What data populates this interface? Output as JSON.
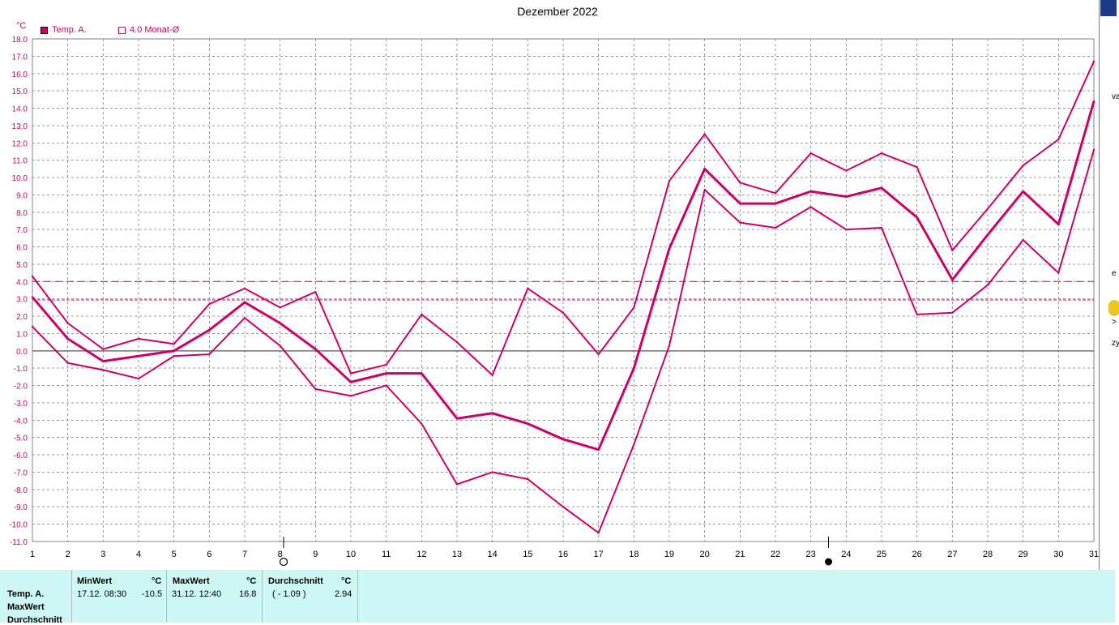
{
  "header": {
    "title": "Dezember 2022",
    "unit": "°C",
    "legend": [
      {
        "label": "Temp. A.",
        "style": "filled"
      },
      {
        "label": "4.0 Monat-Ø",
        "style": "outline"
      }
    ]
  },
  "colors": {
    "series": "#cc0066",
    "grid": "#999999",
    "panel_bg": "#ccf7f4"
  },
  "chart_data": {
    "type": "line",
    "title": "Dezember 2022",
    "ylabel": "°C",
    "xlim": [
      1,
      31
    ],
    "ylim": [
      -11,
      18
    ],
    "grid": true,
    "x": [
      1,
      2,
      3,
      4,
      5,
      6,
      7,
      8,
      9,
      10,
      11,
      12,
      13,
      14,
      15,
      16,
      17,
      18,
      19,
      20,
      21,
      22,
      23,
      24,
      25,
      26,
      27,
      28,
      29,
      30,
      31
    ],
    "x_ticks": [
      "1",
      "2",
      "3",
      "4",
      "5",
      "6",
      "7",
      "8",
      "9",
      "10",
      "11",
      "12",
      "13",
      "14",
      "15",
      "16",
      "17",
      "18",
      "19",
      "20",
      "21",
      "22",
      "23",
      "24",
      "25",
      "26",
      "27",
      "28",
      "29",
      "30",
      "31"
    ],
    "y_ticks": [
      "18.0",
      "17.0",
      "16.0",
      "15.0",
      "14.0",
      "13.0",
      "12.0",
      "11.0",
      "10.0",
      "9.0",
      "8.0",
      "7.0",
      "6.0",
      "5.0",
      "4.0",
      "3.0",
      "2.0",
      "1.0",
      "0.0",
      "-1.0",
      "-2.0",
      "-3.0",
      "-4.0",
      "-5.0",
      "-6.0",
      "-7.0",
      "-8.0",
      "-9.0",
      "-10.0",
      "-11.0"
    ],
    "series": [
      {
        "role": "mean",
        "values": [
          3.1,
          0.7,
          -0.6,
          -0.3,
          0.0,
          1.2,
          2.8,
          1.6,
          0.1,
          -1.8,
          -1.3,
          -1.3,
          -3.9,
          -3.6,
          -4.2,
          -5.1,
          -5.7,
          -1.0,
          5.9,
          10.5,
          8.5,
          8.5,
          9.2,
          8.9,
          9.4,
          7.7,
          4.1,
          6.7,
          9.2,
          7.3,
          14.4
        ]
      },
      {
        "role": "max",
        "values": [
          4.3,
          1.6,
          0.1,
          0.7,
          0.4,
          2.7,
          3.6,
          2.5,
          3.4,
          -1.3,
          -0.8,
          2.1,
          0.5,
          -1.4,
          3.6,
          2.2,
          -0.2,
          2.5,
          9.8,
          12.5,
          9.7,
          9.1,
          11.4,
          10.4,
          11.4,
          10.6,
          5.8,
          8.2,
          10.7,
          12.2,
          16.7
        ]
      },
      {
        "role": "min",
        "values": [
          1.4,
          -0.7,
          -1.1,
          -1.6,
          -0.3,
          -0.2,
          1.9,
          0.3,
          -2.2,
          -2.6,
          -2.0,
          -4.2,
          -7.7,
          -7.0,
          -7.4,
          -9.0,
          -10.5,
          -5.4,
          0.3,
          9.3,
          7.4,
          7.1,
          8.3,
          7.0,
          7.1,
          2.1,
          2.2,
          3.8,
          6.4,
          4.5,
          11.6
        ]
      }
    ],
    "reference_lines": [
      {
        "label": "4.0 Monat-Ø",
        "value": 4.0,
        "style": "dashed"
      },
      {
        "value": 2.94,
        "style": "dashed"
      }
    ],
    "moon_phases": [
      {
        "day": 8.1,
        "phase": "full",
        "marker": "○"
      },
      {
        "day": 23.5,
        "phase": "new",
        "marker": "●"
      }
    ]
  },
  "stats_panel": {
    "row_labels": [
      "Temp. A.",
      "MaxWert",
      "Durchschnitt"
    ],
    "min": {
      "header": "MinWert",
      "unit": "°C",
      "time": "17.12.  08:30",
      "value": "-10.5"
    },
    "max": {
      "header": "MaxWert",
      "unit": "°C",
      "time": "31.12.  12:40",
      "value": "16.8"
    },
    "avg": {
      "header": "Durchschnitt",
      "unit": "°C",
      "note": "( - 1.09 )",
      "value": "2.94"
    }
  },
  "right_strip_chars": [
    "va",
    "e",
    ">",
    "zy"
  ]
}
